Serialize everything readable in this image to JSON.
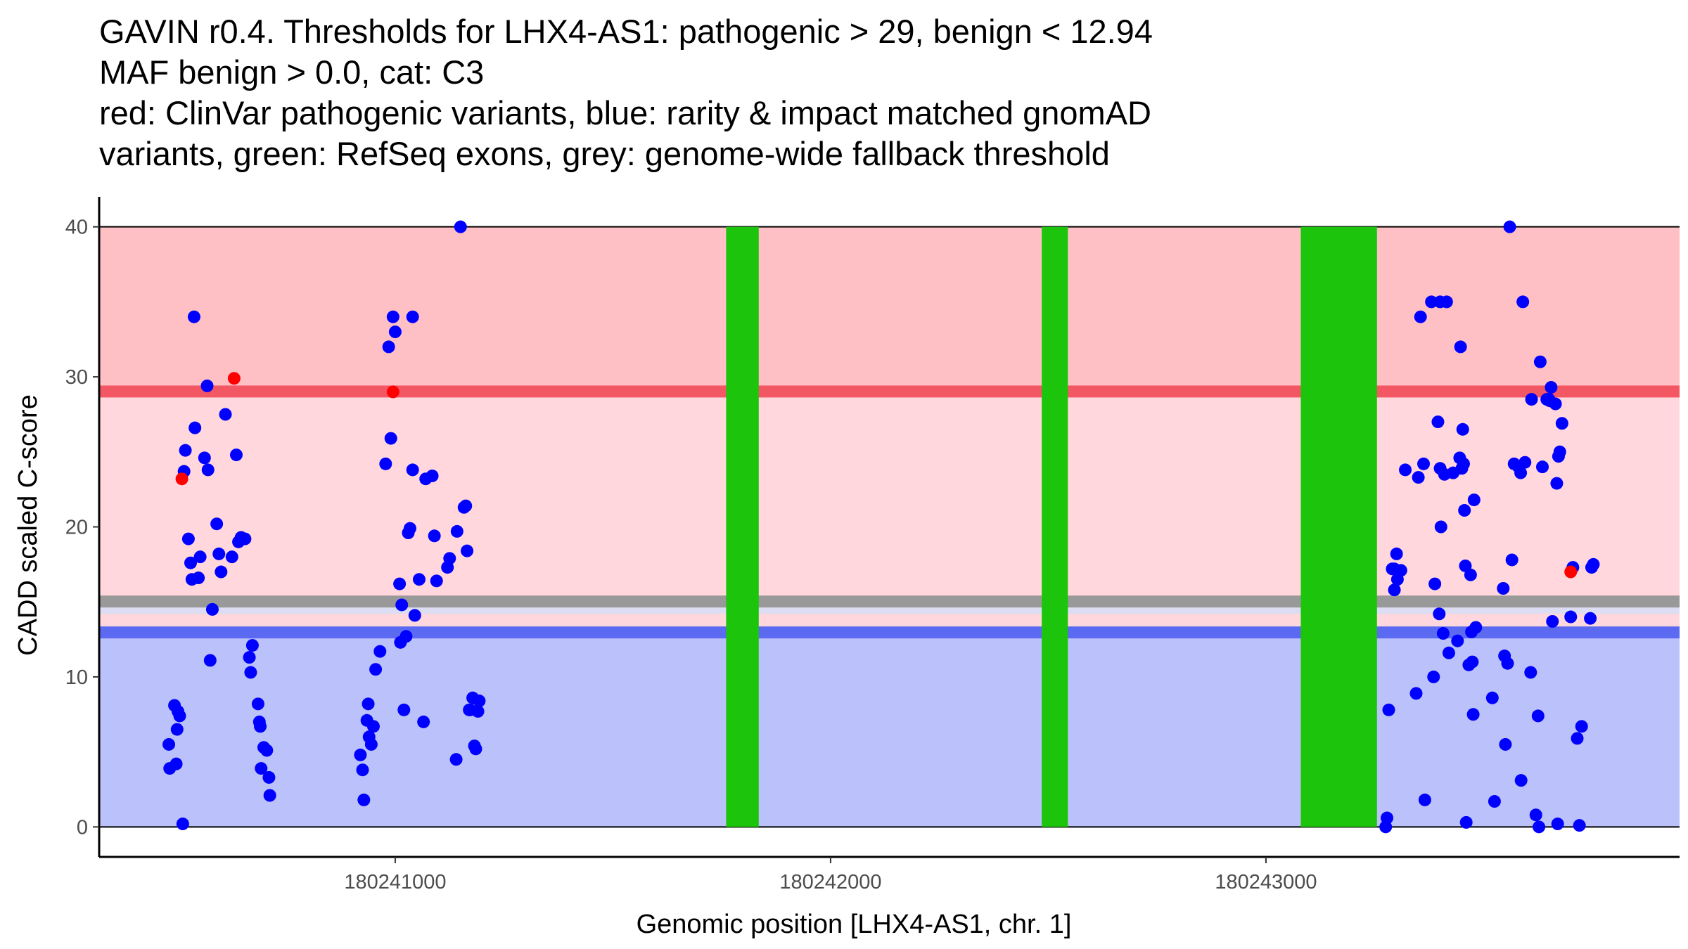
{
  "title_lines": [
    "GAVIN r0.4. Thresholds for LHX4-AS1: pathogenic > 29, benign < 12.94",
    "MAF benign > 0.0, cat: C3",
    "red: ClinVar pathogenic variants, blue: rarity & impact matched gnomAD",
    "variants, green: RefSeq exons, grey: genome-wide fallback threshold"
  ],
  "colors": {
    "pathogenic_region": "#FFC0C5",
    "uncertain_region": "#FFD7DC",
    "benign_region": "#BBC1FB",
    "pathogenic_line": "#F35764",
    "benign_line": "#5B6AF0",
    "fallback_line": "#999999",
    "fallback_band": "#DCDDF2",
    "exon": "#1CC50B",
    "clinvar_point": "#FF0000",
    "gnomad_point": "#0000FF"
  },
  "chart_data": {
    "type": "scatter",
    "xlabel": "Genomic position [LHX4-AS1, chr. 1]",
    "ylabel": "CADD scaled C-score",
    "xlim": [
      180240320,
      180243950
    ],
    "ylim": [
      -2,
      42
    ],
    "x_ticks": [
      180241000,
      180242000,
      180243000
    ],
    "x_tick_labels": [
      "180241000",
      "180242000",
      "180243000"
    ],
    "y_ticks": [
      0,
      10,
      20,
      30,
      40
    ],
    "y_tick_labels": [
      "0",
      "10",
      "20",
      "30",
      "40"
    ],
    "thresholds": {
      "pathogenic": 29,
      "benign": 12.94,
      "fallback": 15.0
    },
    "regions": [
      {
        "name": "pathogenic",
        "from": 29,
        "to": 40
      },
      {
        "name": "uncertain",
        "from": 12.94,
        "to": 29
      },
      {
        "name": "benign",
        "from": 0,
        "to": 12.94
      }
    ],
    "exons": [
      {
        "start": 180241760,
        "end": 180241835
      },
      {
        "start": 180242485,
        "end": 180242545
      },
      {
        "start": 180243080,
        "end": 180243255
      }
    ],
    "clinvar_pathogenic": [
      {
        "x": 180240510,
        "y": 23.2
      },
      {
        "x": 180240630,
        "y": 29.9
      },
      {
        "x": 180240995,
        "y": 29.0
      },
      {
        "x": 180243700,
        "y": 17.0
      }
    ],
    "gnomad_matched": [
      [
        180240480,
        5.5
      ],
      [
        180240482,
        3.9
      ],
      [
        180240493,
        8.1
      ],
      [
        180240497,
        4.2
      ],
      [
        180240499,
        6.5
      ],
      [
        180240501,
        7.7
      ],
      [
        180240505,
        7.4
      ],
      [
        180240512,
        0.2
      ],
      [
        180240515,
        23.7
      ],
      [
        180240518,
        25.1
      ],
      [
        180240525,
        19.2
      ],
      [
        180240530,
        17.6
      ],
      [
        180240533,
        16.5
      ],
      [
        180240538,
        34.0
      ],
      [
        180240540,
        26.6
      ],
      [
        180240548,
        16.6
      ],
      [
        180240552,
        18.0
      ],
      [
        180240562,
        24.6
      ],
      [
        180240568,
        29.4
      ],
      [
        180240570,
        23.8
      ],
      [
        180240575,
        11.1
      ],
      [
        180240580,
        14.5
      ],
      [
        180240590,
        20.2
      ],
      [
        180240595,
        18.2
      ],
      [
        180240600,
        17.0
      ],
      [
        180240610,
        27.5
      ],
      [
        180240625,
        18.0
      ],
      [
        180240635,
        24.8
      ],
      [
        180240640,
        19.0
      ],
      [
        180240646,
        19.3
      ],
      [
        180240655,
        19.2
      ],
      [
        180240665,
        11.3
      ],
      [
        180240668,
        10.3
      ],
      [
        180240672,
        12.1
      ],
      [
        180240685,
        8.2
      ],
      [
        180240688,
        7.0
      ],
      [
        180240690,
        6.7
      ],
      [
        180240692,
        3.9
      ],
      [
        180240698,
        5.3
      ],
      [
        180240705,
        5.1
      ],
      [
        180240710,
        3.3
      ],
      [
        180240712,
        2.1
      ],
      [
        180240920,
        4.8
      ],
      [
        180240925,
        3.8
      ],
      [
        180240928,
        1.8
      ],
      [
        180240935,
        7.1
      ],
      [
        180240938,
        8.2
      ],
      [
        180240940,
        6.0
      ],
      [
        180240945,
        5.5
      ],
      [
        180240950,
        6.7
      ],
      [
        180240955,
        10.5
      ],
      [
        180240965,
        11.7
      ],
      [
        180240978,
        24.2
      ],
      [
        180240985,
        32.0
      ],
      [
        180240990,
        25.9
      ],
      [
        180240995,
        34.0
      ],
      [
        180241000,
        33.0
      ],
      [
        180241010,
        16.2
      ],
      [
        180241015,
        14.8
      ],
      [
        180241012,
        12.3
      ],
      [
        180241020,
        7.8
      ],
      [
        180241025,
        12.7
      ],
      [
        180241030,
        19.6
      ],
      [
        180241034,
        19.9
      ],
      [
        180241040,
        23.8
      ],
      [
        180241040,
        34.0
      ],
      [
        180241045,
        14.1
      ],
      [
        180241055,
        16.5
      ],
      [
        180241065,
        7.0
      ],
      [
        180241070,
        23.2
      ],
      [
        180241085,
        23.4
      ],
      [
        180241090,
        19.4
      ],
      [
        180241095,
        16.4
      ],
      [
        180241120,
        17.3
      ],
      [
        180241125,
        17.9
      ],
      [
        180241140,
        4.5
      ],
      [
        180241142,
        19.7
      ],
      [
        180241150,
        40.0
      ],
      [
        180241158,
        21.3
      ],
      [
        180241162,
        21.4
      ],
      [
        180241165,
        18.4
      ],
      [
        180241170,
        7.8
      ],
      [
        180241172,
        7.8
      ],
      [
        180241178,
        8.6
      ],
      [
        180241182,
        5.4
      ],
      [
        180241185,
        5.2
      ],
      [
        180241190,
        7.7
      ],
      [
        180241193,
        8.4
      ],
      [
        180243275,
        0.0
      ],
      [
        180243278,
        0.6
      ],
      [
        180243282,
        7.8
      ],
      [
        180243290,
        17.2
      ],
      [
        180243295,
        17.2
      ],
      [
        180243295,
        15.8
      ],
      [
        180243300,
        18.2
      ],
      [
        180243302,
        16.5
      ],
      [
        180243310,
        17.1
      ],
      [
        180243320,
        23.8
      ],
      [
        180243345,
        8.9
      ],
      [
        180243350,
        23.3
      ],
      [
        180243355,
        34.0
      ],
      [
        180243362,
        24.2
      ],
      [
        180243365,
        1.8
      ],
      [
        180243380,
        35.0
      ],
      [
        180243385,
        10.0
      ],
      [
        180243388,
        16.2
      ],
      [
        180243395,
        27.0
      ],
      [
        180243398,
        14.2
      ],
      [
        180243400,
        23.9
      ],
      [
        180243400,
        35.0
      ],
      [
        180243402,
        20.0
      ],
      [
        180243407,
        12.9
      ],
      [
        180243410,
        23.5
      ],
      [
        180243415,
        35.0
      ],
      [
        180243420,
        11.6
      ],
      [
        180243430,
        23.6
      ],
      [
        180243440,
        12.4
      ],
      [
        180243445,
        24.6
      ],
      [
        180243447,
        32.0
      ],
      [
        180243450,
        23.9
      ],
      [
        180243452,
        26.5
      ],
      [
        180243454,
        24.2
      ],
      [
        180243456,
        21.1
      ],
      [
        180243458,
        17.4
      ],
      [
        180243460,
        0.3
      ],
      [
        180243466,
        10.8
      ],
      [
        180243470,
        16.8
      ],
      [
        180243472,
        13.0
      ],
      [
        180243474,
        11.0
      ],
      [
        180243476,
        7.5
      ],
      [
        180243478,
        21.8
      ],
      [
        180243482,
        13.3
      ],
      [
        180243520,
        8.6
      ],
      [
        180243525,
        1.7
      ],
      [
        180243545,
        15.9
      ],
      [
        180243548,
        11.4
      ],
      [
        180243550,
        5.5
      ],
      [
        180243555,
        10.9
      ],
      [
        180243560,
        40.0
      ],
      [
        180243565,
        17.8
      ],
      [
        180243570,
        24.2
      ],
      [
        180243580,
        24.0
      ],
      [
        180243585,
        23.6
      ],
      [
        180243586,
        3.1
      ],
      [
        180243590,
        35.0
      ],
      [
        180243595,
        24.3
      ],
      [
        180243608,
        10.3
      ],
      [
        180243610,
        28.5
      ],
      [
        180243620,
        0.8
      ],
      [
        180243625,
        7.4
      ],
      [
        180243627,
        0.0
      ],
      [
        180243630,
        31.0
      ],
      [
        180243635,
        24.0
      ],
      [
        180243645,
        28.5
      ],
      [
        180243650,
        28.5
      ],
      [
        180243652,
        28.4
      ],
      [
        180243655,
        29.3
      ],
      [
        180243658,
        13.7
      ],
      [
        180243665,
        28.2
      ],
      [
        180243668,
        22.9
      ],
      [
        180243670,
        0.2
      ],
      [
        180243672,
        24.7
      ],
      [
        180243675,
        25.0
      ],
      [
        180243680,
        26.9
      ],
      [
        180243700,
        14.0
      ],
      [
        180243705,
        17.3
      ],
      [
        180243715,
        5.9
      ],
      [
        180243720,
        0.1
      ],
      [
        180243725,
        6.7
      ],
      [
        180243745,
        13.9
      ],
      [
        180243748,
        17.3
      ],
      [
        180243752,
        17.5
      ]
    ]
  }
}
